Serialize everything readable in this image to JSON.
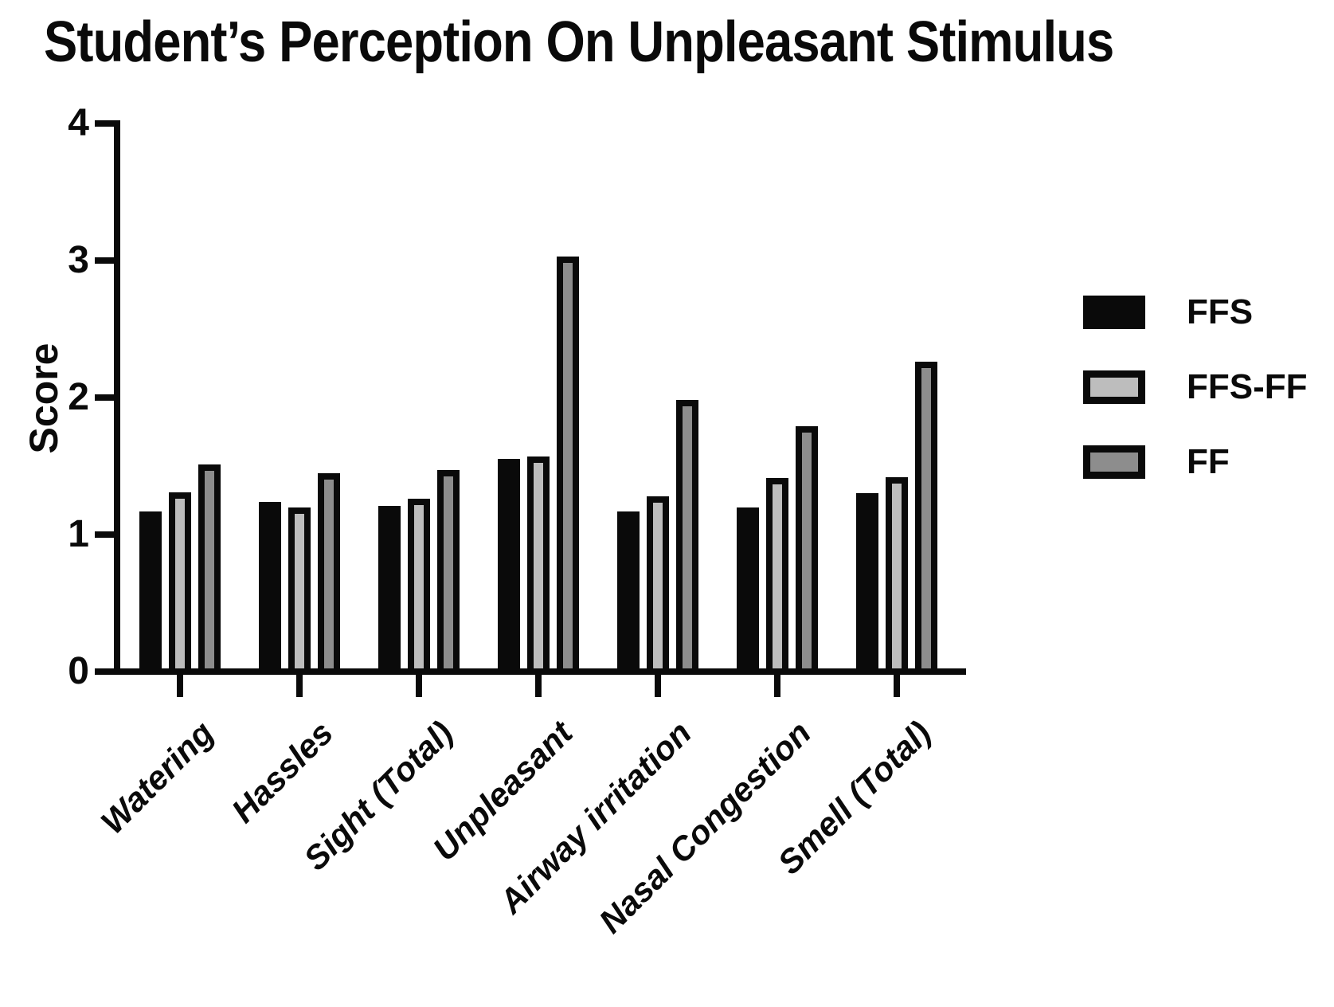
{
  "figure": {
    "background": "#ffffff",
    "axis_color": "#0a0a0a"
  },
  "chart_data": {
    "type": "bar",
    "title": "Student’s Perception On Unpleasant Stimulus",
    "xlabel": "",
    "ylabel": "Score",
    "ylim": [
      0,
      4
    ],
    "ytick_labels": [
      "0",
      "1",
      "2",
      "3",
      "4"
    ],
    "grid": false,
    "legend_position": "right",
    "categories": [
      "Watering",
      "Hassles",
      "Sight (Total)",
      "Unpleasant",
      "Airway irritation",
      "Nasal Congestion",
      "Smell (Total)"
    ],
    "series": [
      {
        "name": "FFS",
        "style": "solid",
        "fill": "#0a0a0a",
        "values": [
          1.17,
          1.24,
          1.21,
          1.55,
          1.17,
          1.2,
          1.3
        ]
      },
      {
        "name": "FFS-FF",
        "style": "outlined",
        "fill": "#bdbdbd",
        "values": [
          1.31,
          1.2,
          1.26,
          1.57,
          1.28,
          1.41,
          1.42
        ]
      },
      {
        "name": "FF",
        "style": "outlined",
        "fill": "#8d8d8d",
        "values": [
          1.51,
          1.45,
          1.47,
          3.03,
          1.98,
          1.79,
          2.26
        ]
      }
    ]
  }
}
